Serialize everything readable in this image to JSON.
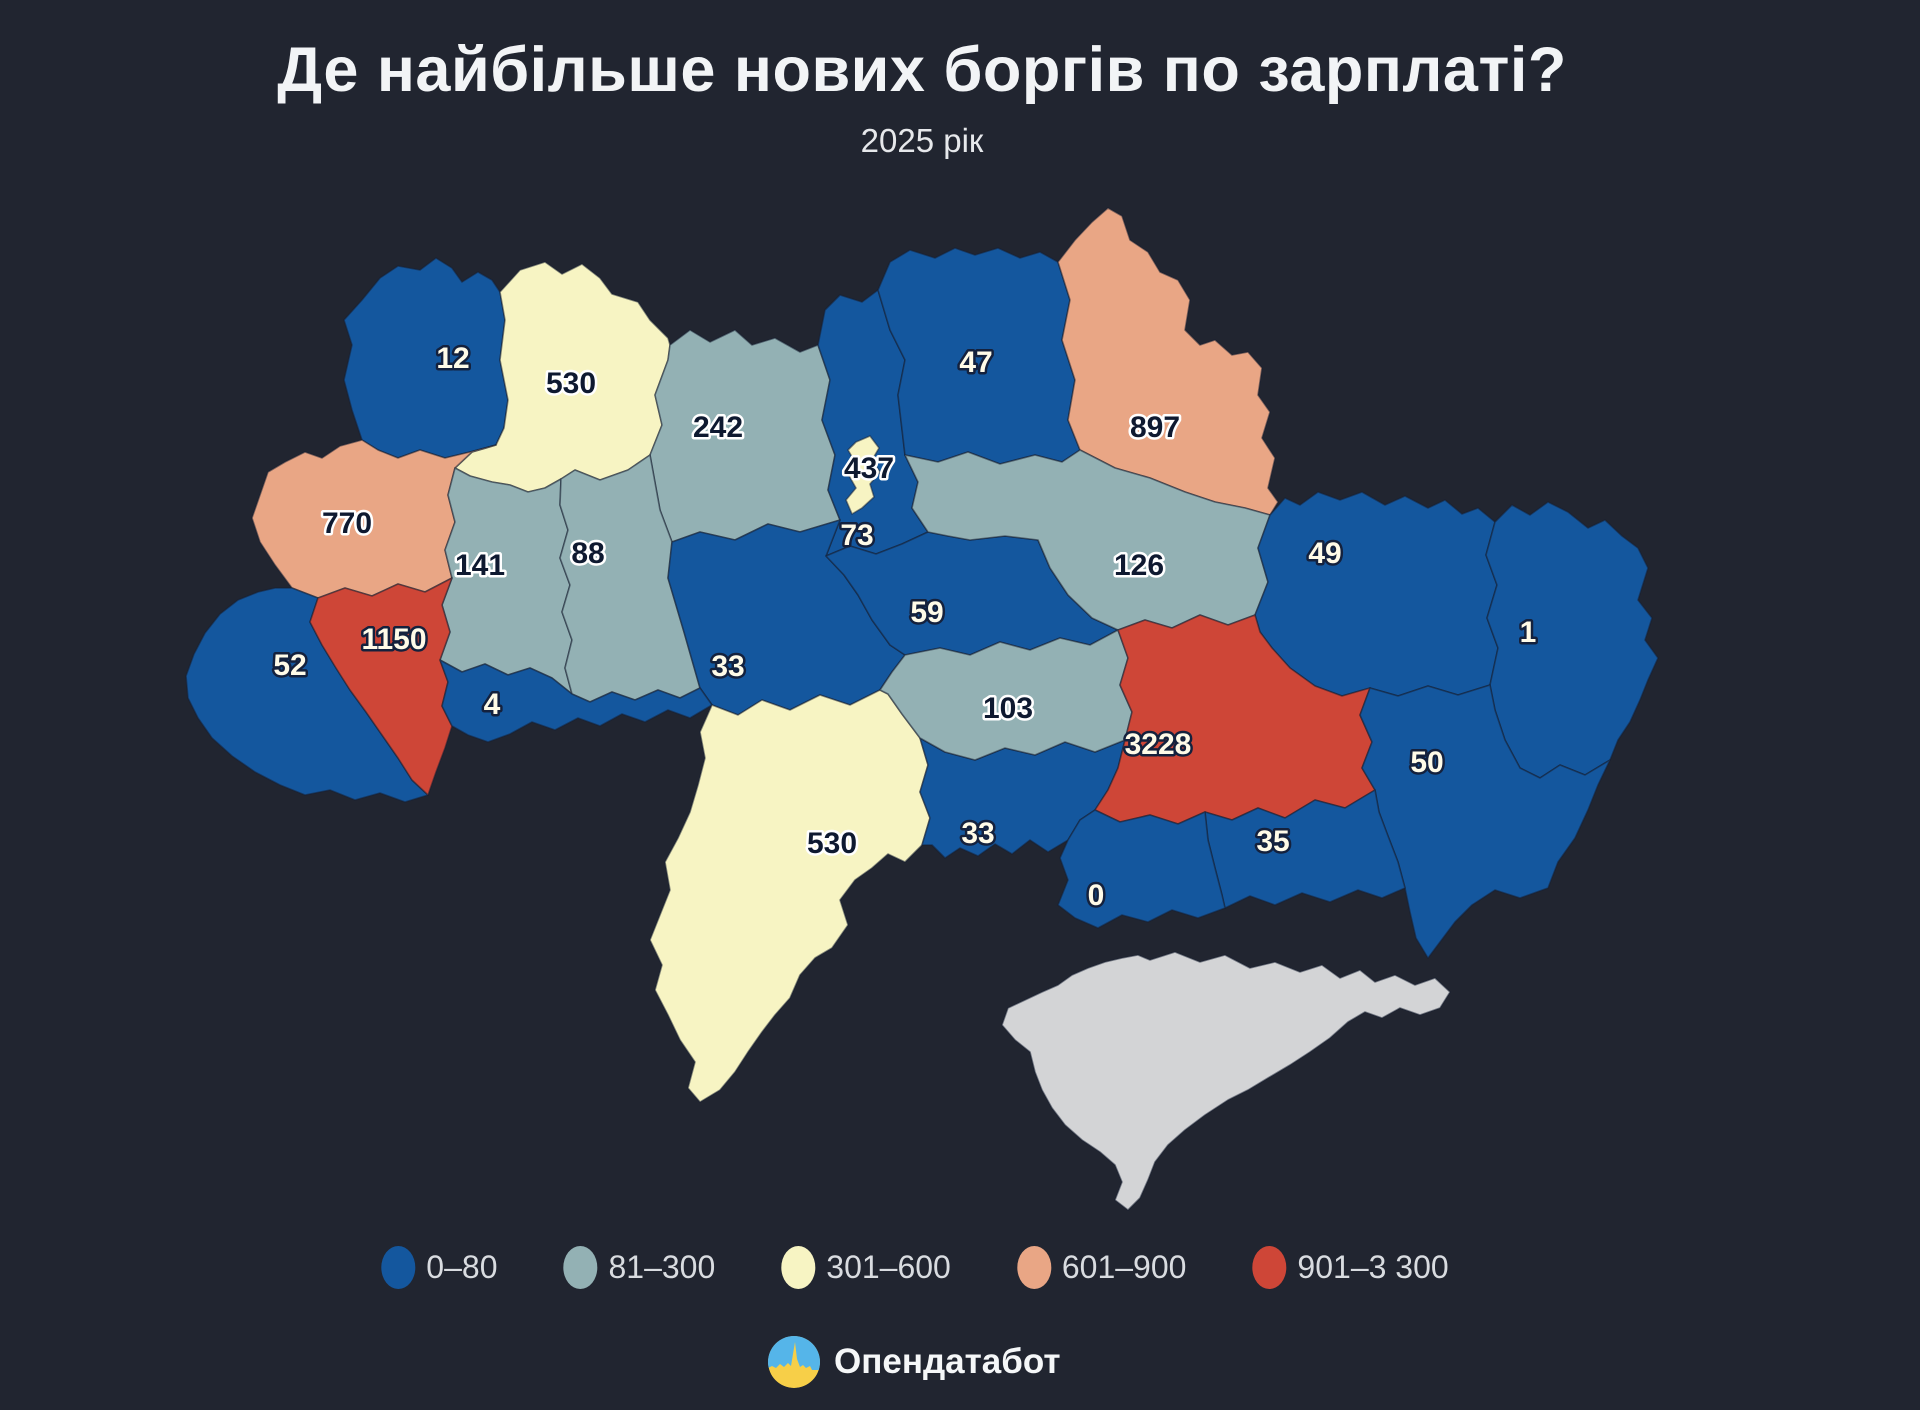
{
  "page": {
    "background": "#212530"
  },
  "header": {
    "title": "Де найбільше нових боргів по зарплаті?",
    "subtitle": "2025 рік"
  },
  "legend": {
    "items": [
      {
        "label": "0–80",
        "color": "#14579E"
      },
      {
        "label": "81–300",
        "color": "#93B1B4"
      },
      {
        "label": "301–600",
        "color": "#F7F4C3"
      },
      {
        "label": "601–900",
        "color": "#E9A685"
      },
      {
        "label": "901–3 300",
        "color": "#CE4637"
      }
    ],
    "no_data_color": "#D3D4D6"
  },
  "footer": {
    "brand": "Опендатабот"
  },
  "chart_data": {
    "type": "choropleth-map",
    "title": "Де найбільше нових боргів по зарплаті?",
    "subtitle": "2025 рік",
    "legend_buckets": [
      "0–80",
      "81–300",
      "301–600",
      "601–900",
      "901–3 300"
    ],
    "regions": [
      {
        "id": "volyn",
        "value": 12,
        "bucket": 0
      },
      {
        "id": "rivne",
        "value": 530,
        "bucket": 2
      },
      {
        "id": "zhytomyr",
        "value": 242,
        "bucket": 1
      },
      {
        "id": "kyiv",
        "value": 73,
        "bucket": 0
      },
      {
        "id": "chernihiv",
        "value": 47,
        "bucket": 0
      },
      {
        "id": "sumy",
        "value": 897,
        "bucket": 3
      },
      {
        "id": "lviv",
        "value": 770,
        "bucket": 3
      },
      {
        "id": "ternopil",
        "value": 141,
        "bucket": 1
      },
      {
        "id": "khmelnytskyi",
        "value": 88,
        "bucket": 1
      },
      {
        "id": "vinnytsia",
        "value": 33,
        "bucket": 0
      },
      {
        "id": "cherkasy",
        "value": 59,
        "bucket": 0
      },
      {
        "id": "poltava",
        "value": 126,
        "bucket": 1
      },
      {
        "id": "kharkiv",
        "value": 49,
        "bucket": 0
      },
      {
        "id": "luhansk",
        "value": 1,
        "bucket": 0
      },
      {
        "id": "zakarpattia",
        "value": 52,
        "bucket": 0
      },
      {
        "id": "ivano-frankivsk",
        "value": 1150,
        "bucket": 4
      },
      {
        "id": "chernivtsi",
        "value": 4,
        "bucket": 0
      },
      {
        "id": "odesa",
        "value": 530,
        "bucket": 2
      },
      {
        "id": "mykolaiv",
        "value": 33,
        "bucket": 0
      },
      {
        "id": "kirovohrad",
        "value": 103,
        "bucket": 1
      },
      {
        "id": "dnipro",
        "value": 3228,
        "bucket": 4
      },
      {
        "id": "donetsk",
        "value": 50,
        "bucket": 0
      },
      {
        "id": "zaporizhzhia",
        "value": 35,
        "bucket": 0
      },
      {
        "id": "kherson",
        "value": 0,
        "bucket": 0
      },
      {
        "id": "kyiv-city",
        "value": 437,
        "bucket": 2
      },
      {
        "id": "crimea",
        "value": null,
        "bucket": "no_data"
      }
    ]
  }
}
